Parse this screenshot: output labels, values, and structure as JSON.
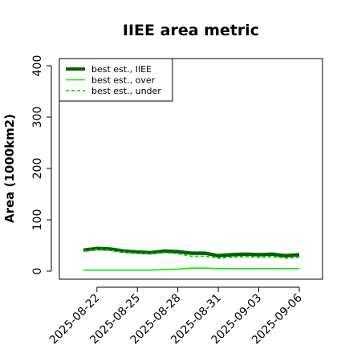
{
  "chart_data": {
    "type": "line",
    "title": "IIEE area metric",
    "xlabel": "",
    "ylabel": "Area (1000km2)",
    "x": [
      "2025-08-21",
      "2025-08-22",
      "2025-08-23",
      "2025-08-24",
      "2025-08-25",
      "2025-08-26",
      "2025-08-27",
      "2025-08-28",
      "2025-08-29",
      "2025-08-30",
      "2025-08-31",
      "2025-09-01",
      "2025-09-02",
      "2025-09-03",
      "2025-09-04",
      "2025-09-05",
      "2025-09-06"
    ],
    "x_ticks": [
      "2025-08-22",
      "2025-08-25",
      "2025-08-28",
      "2025-08-31",
      "2025-09-03",
      "2025-09-06"
    ],
    "ylim": [
      0,
      400
    ],
    "y_ticks": [
      0,
      100,
      200,
      300,
      400
    ],
    "grid": false,
    "legend_position": "top-left",
    "series": [
      {
        "name": "best est., IIEE",
        "color": "#006400",
        "style": "solid",
        "values": [
          41,
          44,
          43,
          39,
          37,
          36,
          39,
          38,
          35,
          35,
          30,
          32,
          33,
          32,
          33,
          30,
          32
        ]
      },
      {
        "name": "best est., over",
        "color": "#00ee00",
        "style": "solid",
        "values": [
          2,
          2,
          2,
          2,
          2,
          2,
          3,
          4,
          6,
          6,
          5,
          5,
          5,
          5,
          5,
          5,
          5
        ]
      },
      {
        "name": "best est., under",
        "color": "#00cc00",
        "style": "dashed",
        "values": [
          39,
          42,
          41,
          37,
          35,
          34,
          36,
          34,
          29,
          29,
          25,
          27,
          28,
          27,
          28,
          25,
          27
        ]
      }
    ]
  }
}
